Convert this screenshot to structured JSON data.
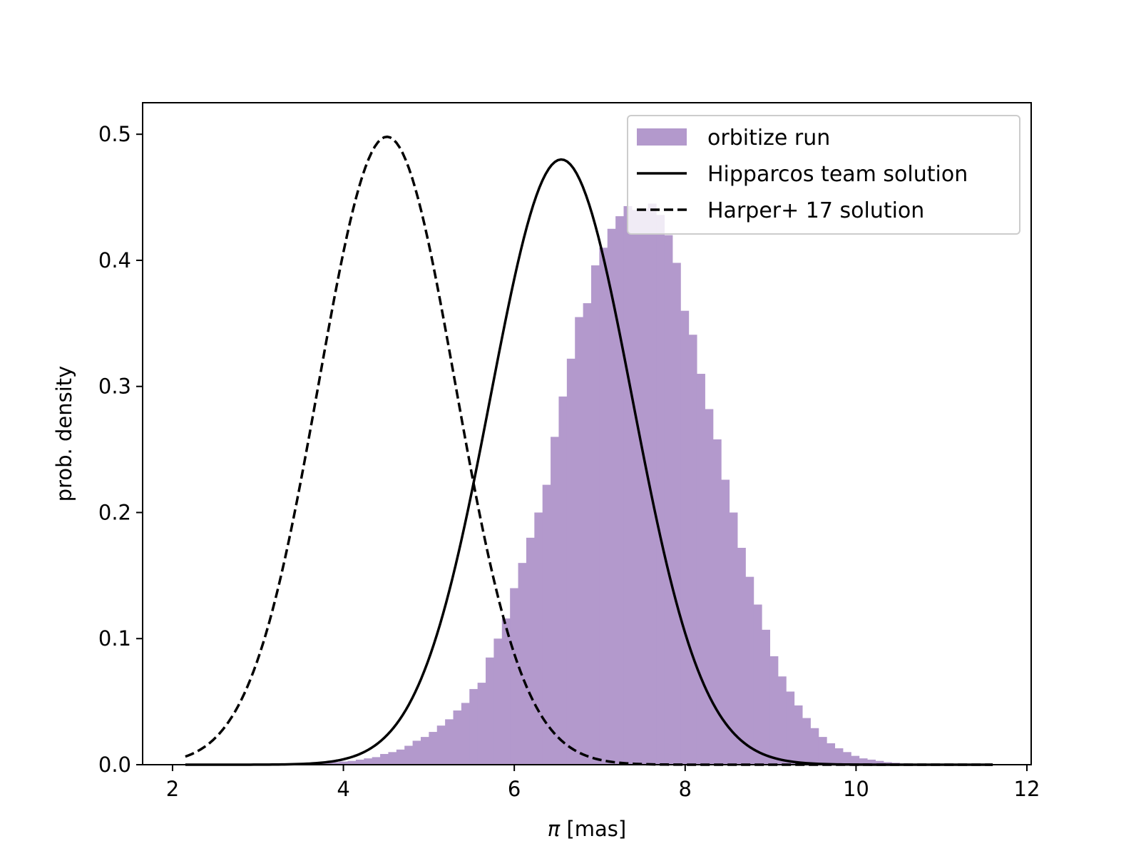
{
  "chart_data": {
    "type": "histogram+line",
    "title": "",
    "xlabel_symbol": "π",
    "xlabel_unit": " [mas]",
    "ylabel": "prob. density",
    "xlim": [
      1.65,
      12.05
    ],
    "ylim": [
      0.0,
      0.525
    ],
    "xticks": [
      2,
      4,
      6,
      8,
      10,
      12
    ],
    "xtick_labels": [
      "2",
      "4",
      "6",
      "8",
      "10",
      "12"
    ],
    "yticks": [
      0.0,
      0.1,
      0.2,
      0.3,
      0.4,
      0.5
    ],
    "ytick_labels": [
      "0.0",
      "0.1",
      "0.2",
      "0.3",
      "0.4",
      "0.5"
    ],
    "grid": false,
    "legend_position": "top-right",
    "histogram": {
      "name": "orbitize run",
      "color": "#b399cc",
      "bin_start": 2.15,
      "bin_width": 0.095,
      "densities": [
        0,
        0,
        0,
        0,
        0,
        0,
        0,
        0,
        0,
        0,
        0,
        0,
        0,
        0,
        0.0005,
        0.001,
        0.001,
        0.0015,
        0.002,
        0.0025,
        0.003,
        0.004,
        0.005,
        0.006,
        0.0085,
        0.01,
        0.012,
        0.015,
        0.019,
        0.022,
        0.026,
        0.031,
        0.036,
        0.043,
        0.049,
        0.06,
        0.065,
        0.085,
        0.1,
        0.116,
        0.14,
        0.16,
        0.18,
        0.2,
        0.222,
        0.26,
        0.292,
        0.322,
        0.355,
        0.366,
        0.396,
        0.41,
        0.425,
        0.435,
        0.443,
        0.44,
        0.441,
        0.445,
        0.436,
        0.42,
        0.398,
        0.36,
        0.341,
        0.31,
        0.282,
        0.258,
        0.226,
        0.2,
        0.172,
        0.149,
        0.127,
        0.107,
        0.086,
        0.07,
        0.058,
        0.047,
        0.037,
        0.029,
        0.022,
        0.017,
        0.013,
        0.01,
        0.007,
        0.005,
        0.004,
        0.003,
        0.002,
        0.0015,
        0.001,
        0.0008,
        0.0006,
        0.0004,
        0.0003,
        0.0002,
        0.0002,
        0.0001,
        0.0001,
        0.0001,
        0.0001
      ]
    },
    "series": [
      {
        "name": "Hipparcos team solution",
        "style": "solid",
        "color": "#000000",
        "mean": 6.55,
        "sigma": 0.83,
        "peak": 0.48,
        "x_range": [
          2.15,
          11.6
        ]
      },
      {
        "name": "Harper+ 17 solution",
        "style": "dashed",
        "color": "#000000",
        "mean": 4.51,
        "sigma": 0.8,
        "peak": 0.498,
        "x_range": [
          2.15,
          11.6
        ]
      }
    ]
  }
}
